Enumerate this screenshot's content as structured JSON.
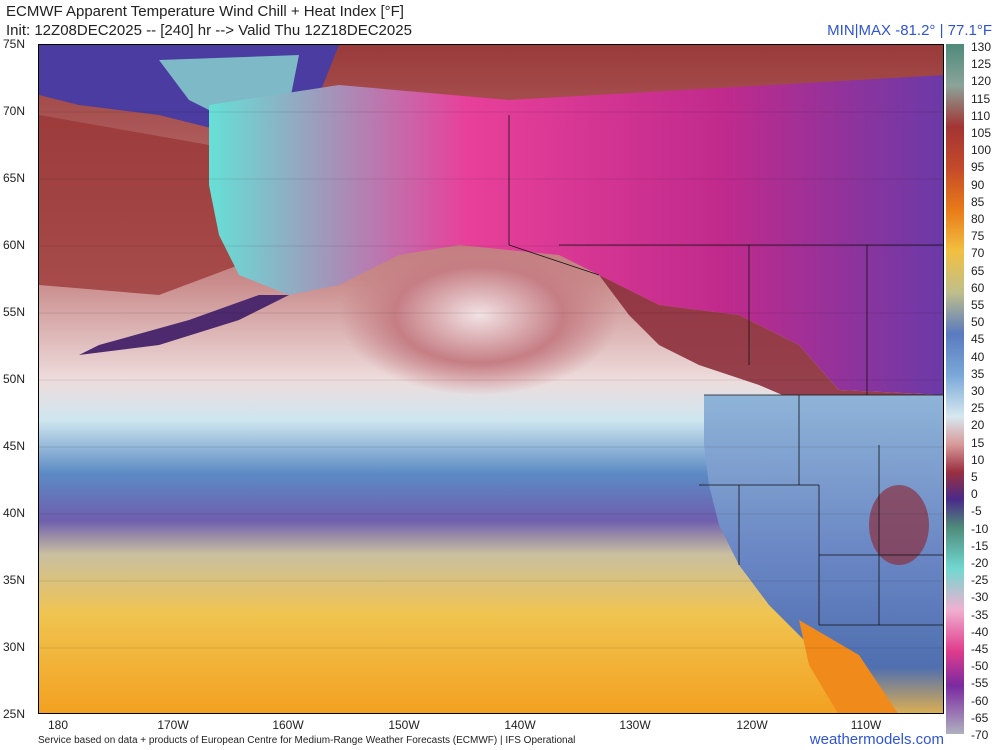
{
  "header": {
    "title": "ECMWF Apparent Temperature Wind Chill + Heat Index [°F]",
    "subtitle": "Init: 12Z08DEC2025 -- [240] hr --> Valid Thu 12Z18DEC2025",
    "minmax": "MIN|MAX -81.2° | 77.1°F"
  },
  "axes": {
    "lat_labels": [
      "75N",
      "70N",
      "65N",
      "60N",
      "55N",
      "50N",
      "45N",
      "40N",
      "35N",
      "30N",
      "25N"
    ],
    "lon_labels": [
      "180",
      "170W",
      "160W",
      "150W",
      "140W",
      "130W",
      "120W",
      "110W"
    ]
  },
  "colorbar": {
    "labels": [
      "130",
      "125",
      "120",
      "115",
      "110",
      "105",
      "100",
      "95",
      "90",
      "85",
      "80",
      "75",
      "70",
      "65",
      "60",
      "55",
      "50",
      "45",
      "40",
      "35",
      "30",
      "25",
      "20",
      "15",
      "10",
      "5",
      "0",
      "-5",
      "-10",
      "-15",
      "-20",
      "-25",
      "-30",
      "-35",
      "-40",
      "-45",
      "-50",
      "-55",
      "-60",
      "-65",
      "-70"
    ]
  },
  "footer": {
    "credit": "Service based on data + products of European Centre for Medium-Range Weather Forecasts (ECMWF) | IFS Operational",
    "brand": "weathermodels.com"
  },
  "colors": {
    "title_text": "#222222",
    "accent_blue": "#2f55d6"
  }
}
